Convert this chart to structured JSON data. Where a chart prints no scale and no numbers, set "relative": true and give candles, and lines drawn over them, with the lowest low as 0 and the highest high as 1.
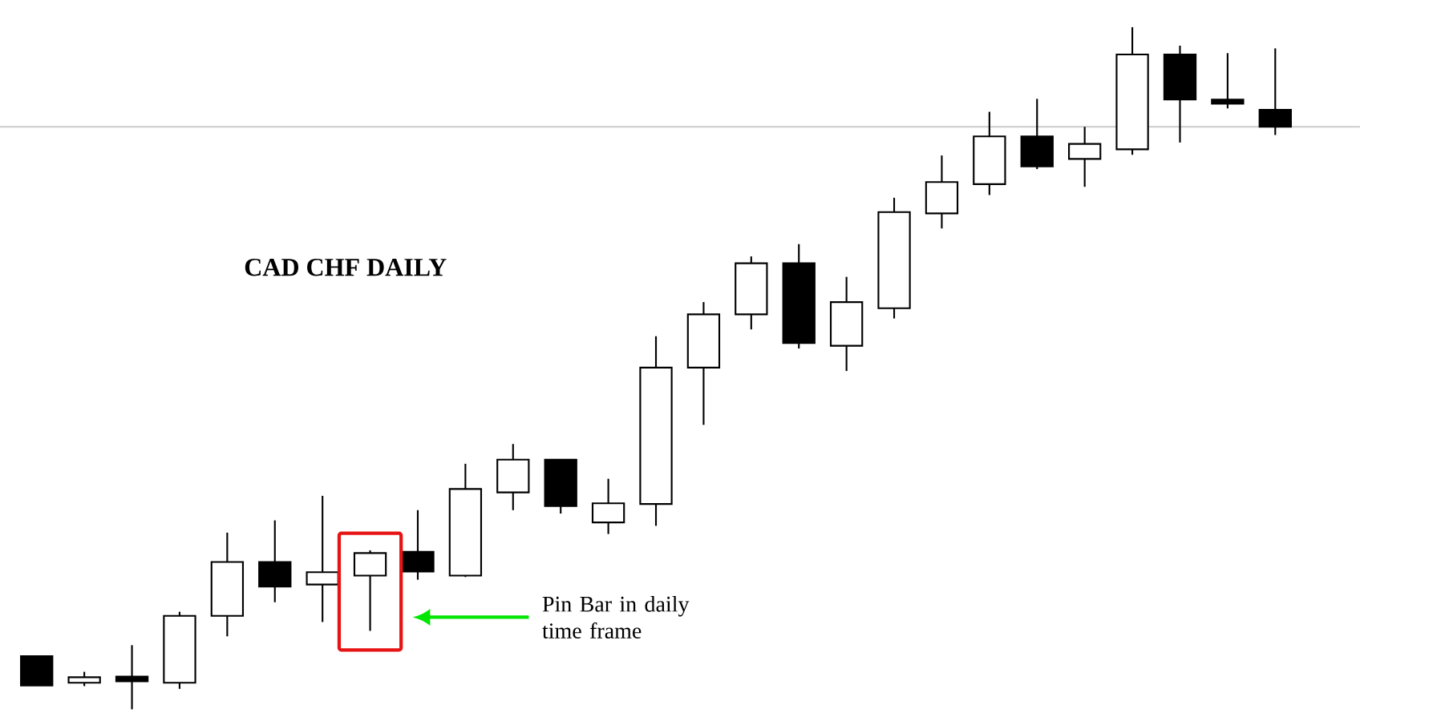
{
  "chart_data": {
    "type": "candlestick",
    "title": "CAD CHF DAILY",
    "relative": true,
    "categories": [
      null,
      null,
      null,
      null,
      null,
      null,
      null,
      null,
      null,
      null,
      null,
      null,
      null,
      null,
      null,
      null,
      null,
      null,
      null,
      null,
      null,
      null,
      null,
      null,
      null,
      null,
      null
    ],
    "ohlc": [
      [
        0.078,
        0.078,
        0.035,
        0.035
      ],
      [
        0.039,
        0.055,
        0.034,
        0.047
      ],
      [
        0.048,
        0.094,
        0.0,
        0.041
      ],
      [
        0.039,
        0.143,
        0.03,
        0.137
      ],
      [
        0.137,
        0.259,
        0.107,
        0.216
      ],
      [
        0.216,
        0.277,
        0.157,
        0.18
      ],
      [
        0.183,
        0.313,
        0.128,
        0.201
      ],
      [
        0.196,
        0.233,
        0.115,
        0.229
      ],
      [
        0.231,
        0.292,
        0.19,
        0.202
      ],
      [
        0.196,
        0.36,
        0.194,
        0.323
      ],
      [
        0.318,
        0.389,
        0.292,
        0.366
      ],
      [
        0.366,
        0.366,
        0.287,
        0.298
      ],
      [
        0.274,
        0.338,
        0.257,
        0.302
      ],
      [
        0.301,
        0.547,
        0.269,
        0.501
      ],
      [
        0.501,
        0.597,
        0.417,
        0.579
      ],
      [
        0.579,
        0.664,
        0.557,
        0.654
      ],
      [
        0.654,
        0.682,
        0.529,
        0.537
      ],
      [
        0.533,
        0.634,
        0.496,
        0.597
      ],
      [
        0.588,
        0.75,
        0.573,
        0.729
      ],
      [
        0.727,
        0.812,
        0.705,
        0.773
      ],
      [
        0.77,
        0.876,
        0.754,
        0.84
      ],
      [
        0.84,
        0.895,
        0.792,
        0.796
      ],
      [
        0.807,
        0.854,
        0.766,
        0.829
      ],
      [
        0.821,
        1.0,
        0.813,
        0.96
      ],
      [
        0.96,
        0.973,
        0.831,
        0.894
      ],
      [
        0.894,
        0.962,
        0.881,
        0.888
      ],
      [
        0.879,
        0.969,
        0.842,
        0.854
      ]
    ],
    "ref_lines": [
      {
        "axis": "y",
        "value": 0.854,
        "color": "#cccccc"
      }
    ],
    "annotations": [
      "Pin Bar in daily time frame"
    ]
  }
}
